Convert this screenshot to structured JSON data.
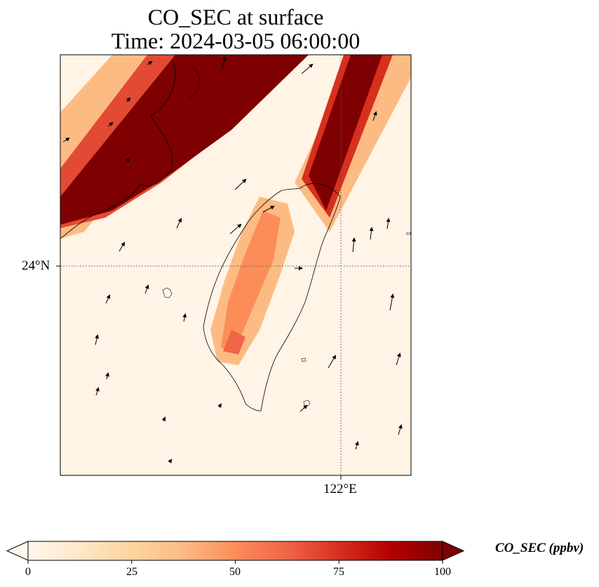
{
  "figure": {
    "title_line1": "CO_SEC at surface",
    "title_line2": "Time: 2024-03-05 06:00:00"
  },
  "map": {
    "region": "Taiwan",
    "lat_tick_label": "24°N",
    "lon_tick_label": "122°E",
    "gridlines": "dotted",
    "field": "CO_SEC",
    "overlay": "wind vectors (arrows)"
  },
  "colorbar": {
    "label": "CO_SEC (ppbv)",
    "ticks": [
      "0",
      "25",
      "50",
      "75",
      "100"
    ],
    "range": [
      0,
      100
    ],
    "extend": "both",
    "colormap": "OrRd",
    "colors": [
      "#fff7ec",
      "#fee8c8",
      "#fdd49e",
      "#fdbb84",
      "#fc8d59",
      "#ef6548",
      "#d7301f",
      "#b30000",
      "#7f0000"
    ]
  }
}
